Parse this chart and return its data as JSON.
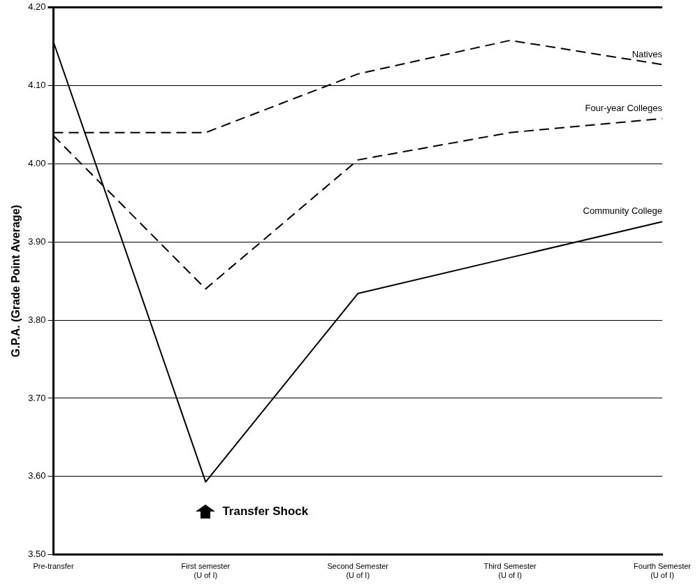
{
  "chart_data": {
    "type": "line",
    "ylabel": "G.P.A. (Grade Point Average)",
    "categories": [
      "Pre-transfer",
      "First semester\n(U of I)",
      "Second Semester\n(U of I)",
      "Third Semester\n(U of I)",
      "Fourth Semester\n(U of I)"
    ],
    "series": [
      {
        "name": "Natives",
        "color": "#000000",
        "line_style": "dashed",
        "values": [
          4.04,
          4.04,
          4.115,
          4.158,
          4.127
        ]
      },
      {
        "name": "Four-year Colleges",
        "color": "#000000",
        "line_style": "dashed",
        "values": [
          4.036,
          3.84,
          4.005,
          4.04,
          4.058
        ]
      },
      {
        "name": "Community College",
        "color": "#000000",
        "line_style": "solid",
        "values": [
          4.156,
          3.593,
          3.834,
          3.88,
          3.926
        ]
      }
    ],
    "ylim": [
      3.5,
      4.2
    ],
    "yticks": [
      {
        "value": 3.5,
        "label": "3.50"
      },
      {
        "value": 3.6,
        "label": "3.60"
      },
      {
        "value": 3.7,
        "label": "3.70"
      },
      {
        "value": 3.8,
        "label": "3.80"
      },
      {
        "value": 3.9,
        "label": "3.90"
      },
      {
        "value": 4.0,
        "label": "4.00"
      },
      {
        "value": 4.1,
        "label": "4.10"
      },
      {
        "value": 4.2,
        "label": "4.20"
      }
    ],
    "grid": "y",
    "legend": false,
    "marker": "none",
    "annotations": [
      {
        "text": "Transfer Shock",
        "x": "First semester\n(U of I)",
        "y": 3.555
      }
    ]
  }
}
